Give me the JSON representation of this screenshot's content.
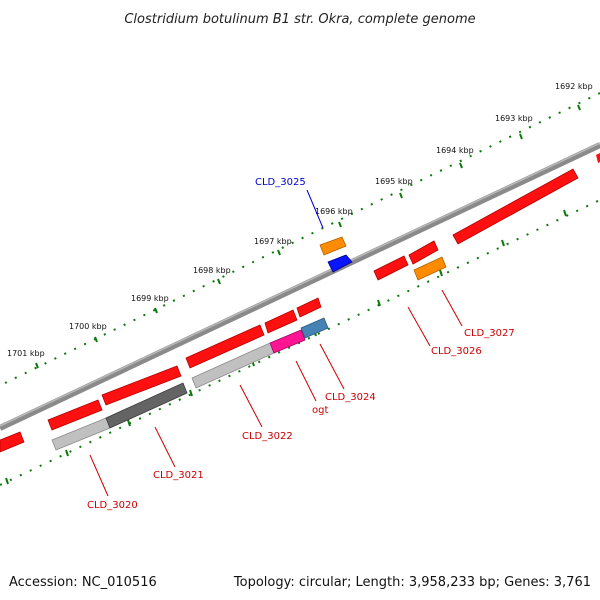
{
  "title": "Clostridium botulinum B1 str. Okra, complete genome",
  "footer": {
    "accession": "Accession: NC_010516",
    "summary": "Topology: circular; Length: 3,958,233 bp; Genes: 3,761"
  },
  "scale": {
    "labels": [
      "1692 kbp",
      "1693 kbp",
      "1694 kbp",
      "1695 kbp",
      "1696 kbp",
      "1697 kbp",
      "1698 kbp",
      "1699 kbp",
      "1700 kbp",
      "1701 kbp"
    ]
  },
  "gene_labels": [
    {
      "id": "CLD_3025",
      "label": "CLD_3025",
      "color": "#0000cc"
    },
    {
      "id": "CLD_3027",
      "label": "CLD_3027",
      "color": "#cc0000"
    },
    {
      "id": "CLD_3026",
      "label": "CLD_3026",
      "color": "#cc0000"
    },
    {
      "id": "CLD_3024",
      "label": "CLD_3024",
      "color": "#cc0000"
    },
    {
      "id": "ogt",
      "label": "ogt",
      "color": "#cc0000"
    },
    {
      "id": "CLD_3022",
      "label": "CLD_3022",
      "color": "#cc0000"
    },
    {
      "id": "CLD_3021",
      "label": "CLD_3021",
      "color": "#cc0000"
    },
    {
      "id": "CLD_3020",
      "label": "CLD_3020",
      "color": "#cc0000"
    }
  ],
  "colors": {
    "backbone": "#7a7a7a",
    "cds": "#ff1010",
    "rrna_orange": "#ff8c00",
    "blue": "#0a14ff",
    "steel": "#4682b4",
    "magenta": "#ff1493",
    "gray_light": "#c0c0c0",
    "gray_dark": "#646464",
    "tick": "#0a7a0a"
  }
}
